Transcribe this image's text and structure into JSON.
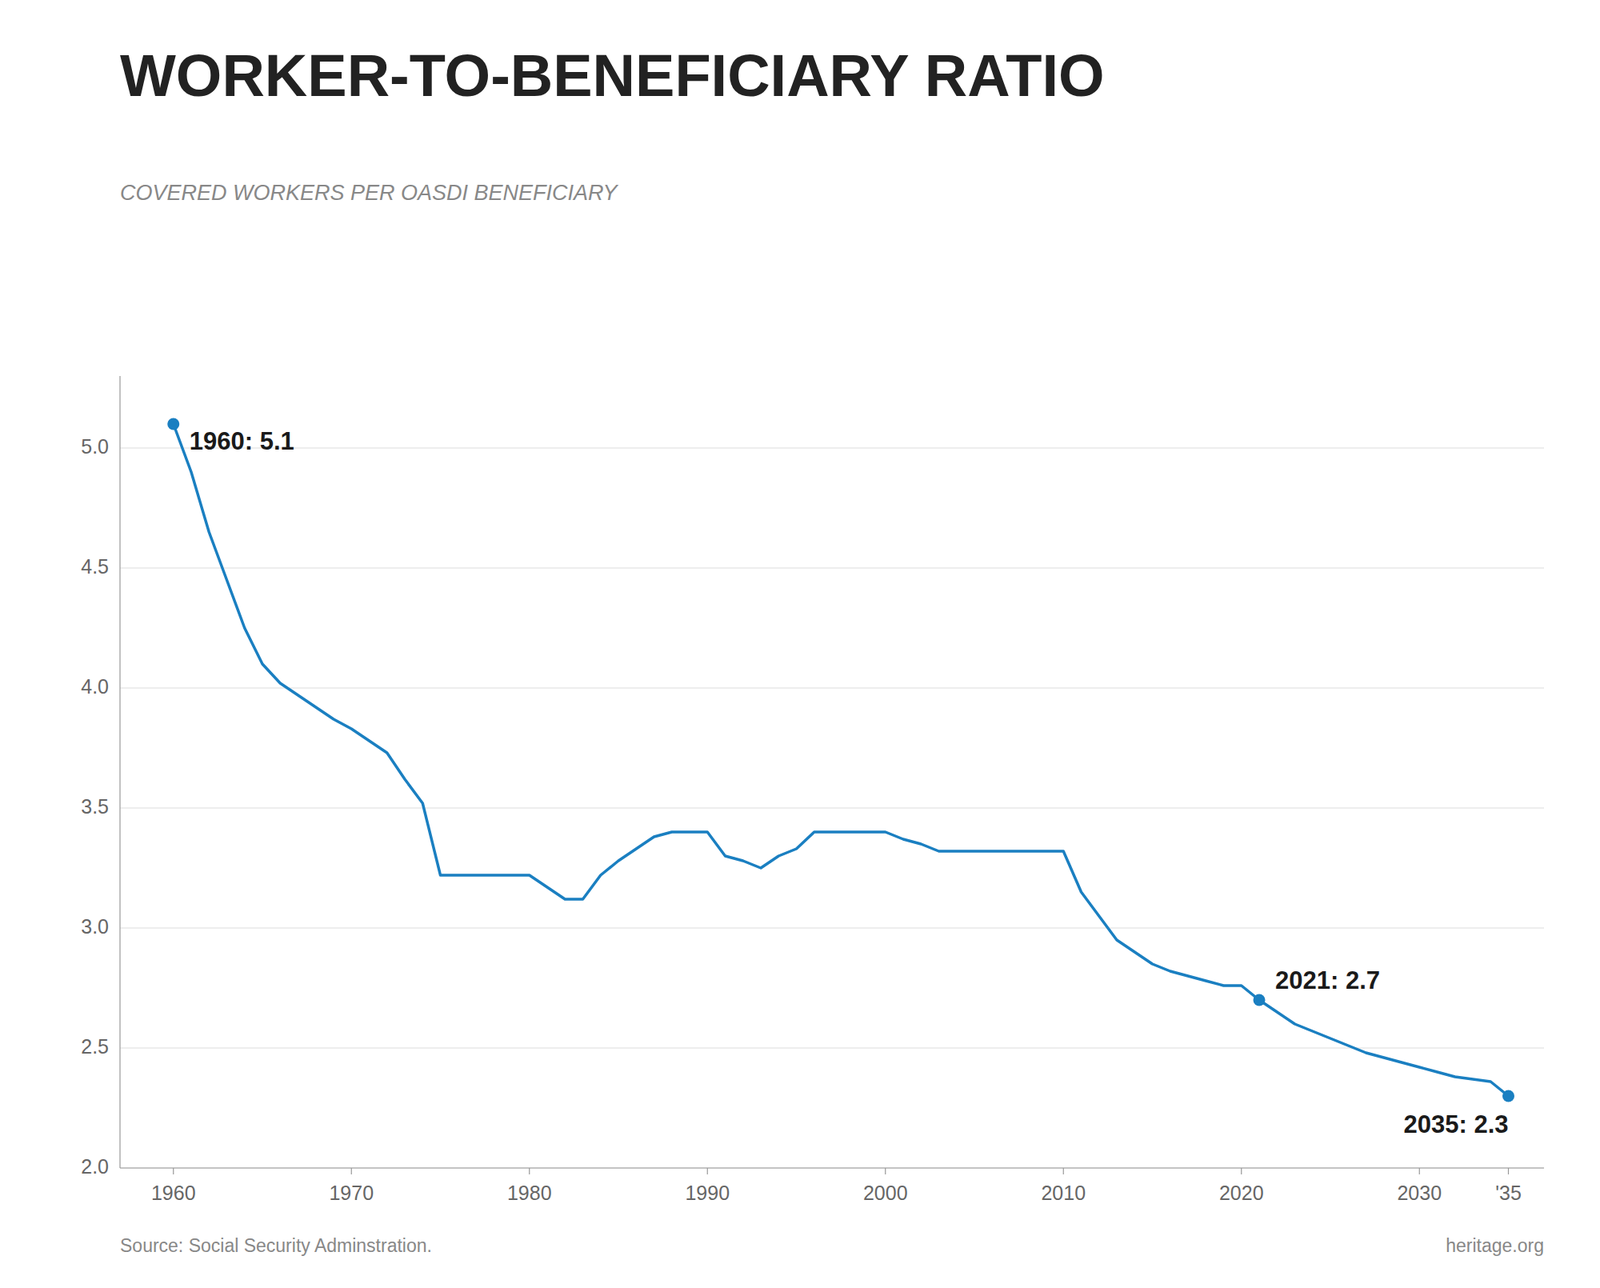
{
  "chart_data": {
    "type": "line",
    "title": "WORKER-TO-BENEFICIARY RATIO",
    "subtitle": "COVERED WORKERS PER OASDI BENEFICIARY",
    "source": "Source: Social Security Adminstration.",
    "credit": "heritage.org",
    "color": "#1a7fc1",
    "grid": true,
    "x": [
      1960,
      1961,
      1962,
      1963,
      1964,
      1965,
      1966,
      1967,
      1968,
      1969,
      1970,
      1971,
      1972,
      1973,
      1974,
      1975,
      1976,
      1977,
      1978,
      1979,
      1980,
      1981,
      1982,
      1983,
      1984,
      1985,
      1986,
      1987,
      1988,
      1989,
      1990,
      1991,
      1992,
      1993,
      1994,
      1995,
      1996,
      1997,
      1998,
      1999,
      2000,
      2001,
      2002,
      2003,
      2004,
      2005,
      2006,
      2007,
      2008,
      2009,
      2010,
      2011,
      2012,
      2013,
      2014,
      2015,
      2016,
      2017,
      2018,
      2019,
      2020,
      2021,
      2022,
      2023,
      2024,
      2025,
      2026,
      2027,
      2028,
      2029,
      2030,
      2031,
      2032,
      2033,
      2034,
      2035
    ],
    "values": [
      5.1,
      4.9,
      4.65,
      4.45,
      4.25,
      4.1,
      4.02,
      3.97,
      3.92,
      3.87,
      3.83,
      3.78,
      3.73,
      3.62,
      3.52,
      3.22,
      3.22,
      3.22,
      3.22,
      3.22,
      3.22,
      3.17,
      3.12,
      3.12,
      3.22,
      3.28,
      3.33,
      3.38,
      3.4,
      3.4,
      3.4,
      3.3,
      3.28,
      3.25,
      3.3,
      3.33,
      3.4,
      3.4,
      3.4,
      3.4,
      3.4,
      3.37,
      3.35,
      3.32,
      3.32,
      3.32,
      3.32,
      3.32,
      3.32,
      3.32,
      3.32,
      3.15,
      3.05,
      2.95,
      2.9,
      2.85,
      2.82,
      2.8,
      2.78,
      2.76,
      2.76,
      2.7,
      2.65,
      2.6,
      2.57,
      2.54,
      2.51,
      2.48,
      2.46,
      2.44,
      2.42,
      2.4,
      2.38,
      2.37,
      2.36,
      2.3
    ],
    "xlim": [
      1957,
      2037
    ],
    "xticks": [
      1960,
      1970,
      1980,
      1990,
      2000,
      2010,
      2020,
      2030,
      {
        "value": 2035,
        "label": "'35"
      }
    ],
    "ylim": [
      2.0,
      5.3
    ],
    "yticks": [
      {
        "value": 2.0,
        "label": "2.0"
      },
      {
        "value": 2.5,
        "label": "2.5"
      },
      {
        "value": 3.0,
        "label": "3.0"
      },
      {
        "value": 3.5,
        "label": "3.5"
      },
      {
        "value": 4.0,
        "label": "4.0"
      },
      {
        "value": 4.5,
        "label": "4.5"
      },
      {
        "value": 5.0,
        "label": "5.0"
      }
    ],
    "annotations": [
      {
        "text": "1960: 5.1",
        "x": 1960,
        "y": 5.1
      },
      {
        "text": "2021: 2.7",
        "x": 2021,
        "y": 2.7
      },
      {
        "text": "2035: 2.3",
        "x": 2035,
        "y": 2.3
      }
    ]
  }
}
